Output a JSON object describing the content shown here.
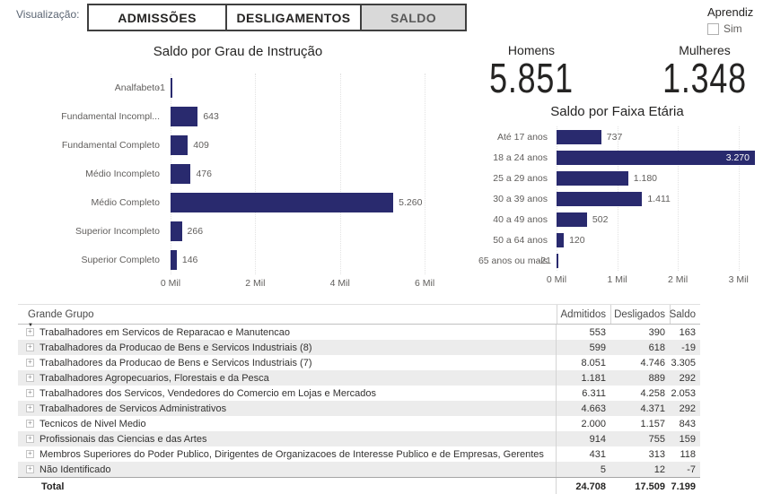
{
  "toolbar": {
    "label": "Visualização:",
    "tabs": [
      {
        "label": "ADMISSÕES",
        "selected": false
      },
      {
        "label": "DESLIGAMENTOS",
        "selected": false
      },
      {
        "label": "SALDO",
        "selected": true
      }
    ],
    "aprendiz": {
      "title": "Aprendiz",
      "option": "Sim",
      "checked": false
    }
  },
  "cards": {
    "homens": {
      "label": "Homens",
      "value": "5.851"
    },
    "mulheres": {
      "label": "Mulheres",
      "value": "1.348"
    }
  },
  "colors": {
    "bar": "#292A6E",
    "selected_tab_bg": "#D9D9D9",
    "stripe": "#ECECEC",
    "text_muted": "#605E5C"
  },
  "chart_data": [
    {
      "type": "bar",
      "orientation": "horizontal",
      "title": "Saldo por Grau de Instrução",
      "categories": [
        "Analfabeto",
        "Fundamental Incompl...",
        "Fundamental Completo",
        "Médio Incompleto",
        "Médio Completo",
        "Superior Incompleto",
        "Superior Completo"
      ],
      "values": [
        -1,
        643,
        409,
        476,
        5260,
        266,
        146
      ],
      "value_labels": [
        "-1",
        "643",
        "409",
        "476",
        "5.260",
        "266",
        "146"
      ],
      "x_ticks": [
        "0 Mil",
        "2 Mil",
        "4 Mil",
        "6 Mil"
      ],
      "x_tick_values": [
        0,
        2000,
        4000,
        6000
      ],
      "xlim": [
        0,
        6740
      ],
      "grid": true,
      "legend": "none"
    },
    {
      "type": "bar",
      "orientation": "horizontal",
      "title": "Saldo por Faixa Etária",
      "categories": [
        "Até 17 anos",
        "18 a 24 anos",
        "25 a 29 anos",
        "30 a 39 anos",
        "40 a 49 anos",
        "50 a 64 anos",
        "65 anos ou mais"
      ],
      "values": [
        737,
        3270,
        1180,
        1411,
        502,
        120,
        -21
      ],
      "value_labels": [
        "737",
        "3.270",
        "1.180",
        "1.411",
        "502",
        "120",
        "-21"
      ],
      "x_ticks": [
        "0 Mil",
        "1 Mil",
        "2 Mil",
        "3 Mil"
      ],
      "x_tick_values": [
        0,
        1000,
        2000,
        3000
      ],
      "xlim": [
        0,
        3300
      ],
      "grid": true,
      "legend": "none"
    }
  ],
  "table": {
    "columns": [
      "Grande Grupo",
      "Admitidos",
      "Desligados",
      "Saldo"
    ],
    "rows": [
      {
        "name": "Trabalhadores em Servicos de Reparacao e Manutencao",
        "admitidos": "553",
        "desligados": "390",
        "saldo": "163"
      },
      {
        "name": "Trabalhadores da Producao de Bens e Servicos Industriais (8)",
        "admitidos": "599",
        "desligados": "618",
        "saldo": "-19"
      },
      {
        "name": "Trabalhadores da Producao de Bens e Servicos Industriais (7)",
        "admitidos": "8.051",
        "desligados": "4.746",
        "saldo": "3.305"
      },
      {
        "name": "Trabalhadores Agropecuarios, Florestais e da Pesca",
        "admitidos": "1.181",
        "desligados": "889",
        "saldo": "292"
      },
      {
        "name": "Trabalhadores dos Servicos, Vendedores do Comercio em Lojas e Mercados",
        "admitidos": "6.311",
        "desligados": "4.258",
        "saldo": "2.053"
      },
      {
        "name": "Trabalhadores de Servicos Administrativos",
        "admitidos": "4.663",
        "desligados": "4.371",
        "saldo": "292"
      },
      {
        "name": "Tecnicos de Nivel Medio",
        "admitidos": "2.000",
        "desligados": "1.157",
        "saldo": "843"
      },
      {
        "name": "Profissionais das Ciencias e das Artes",
        "admitidos": "914",
        "desligados": "755",
        "saldo": "159"
      },
      {
        "name": "Membros Superiores do Poder Publico, Dirigentes de Organizacoes de Interesse Publico e de Empresas, Gerentes",
        "admitidos": "431",
        "desligados": "313",
        "saldo": "118"
      },
      {
        "name": "Não Identificado",
        "admitidos": "5",
        "desligados": "12",
        "saldo": "-7"
      }
    ],
    "total": {
      "label": "Total",
      "values": [
        "24.708",
        "17.509",
        "7.199"
      ]
    }
  }
}
